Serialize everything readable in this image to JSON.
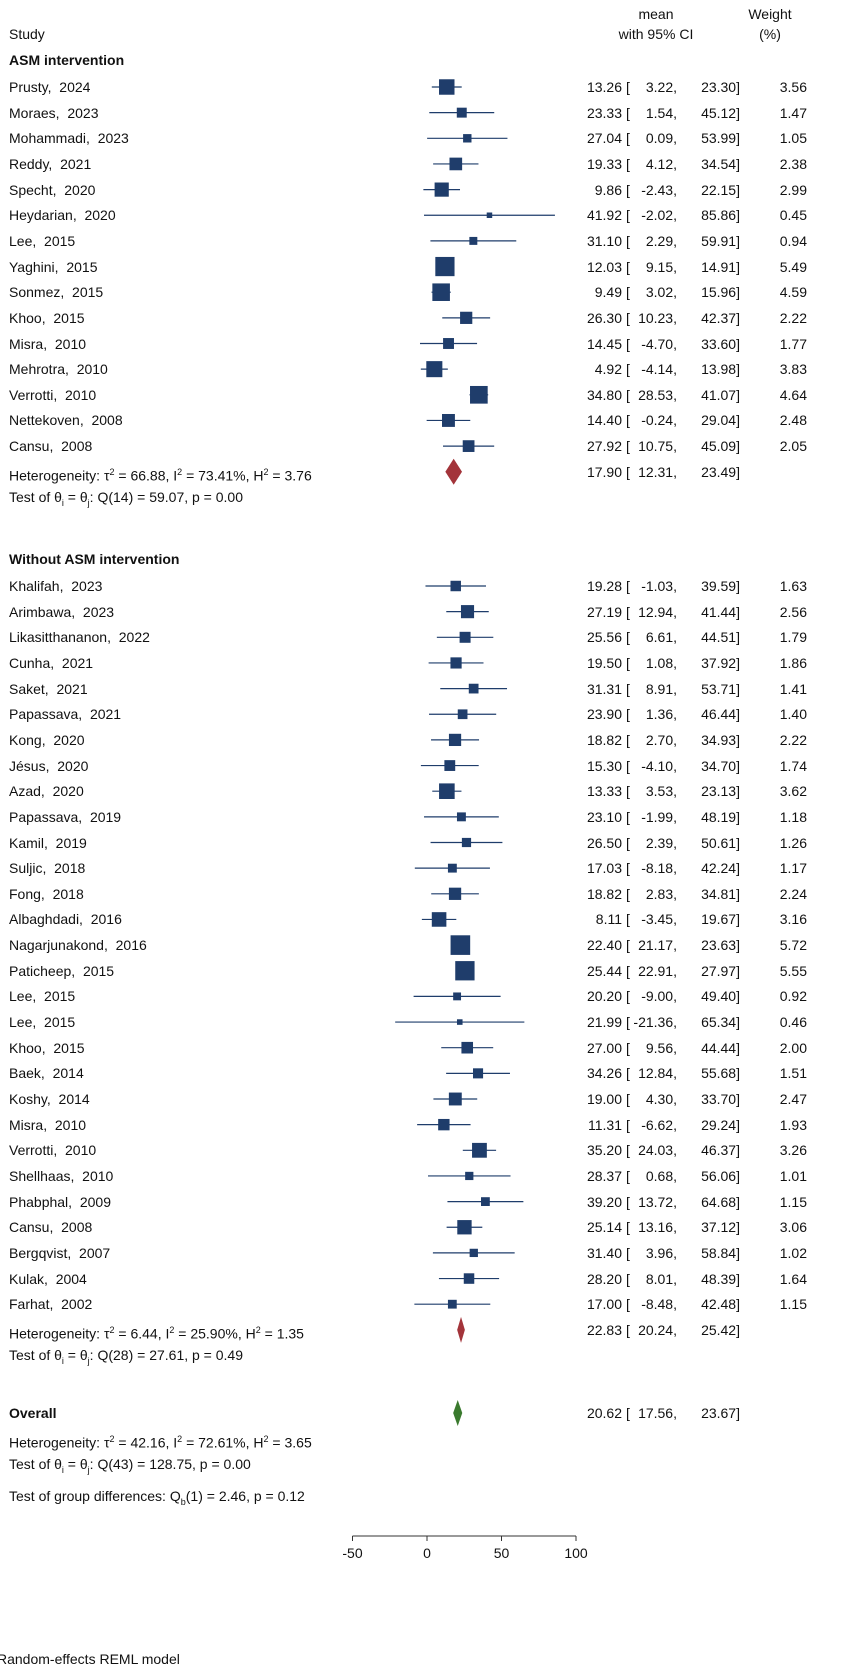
{
  "header": {
    "study": "Study",
    "mean_line1": "mean",
    "mean_line2": "with 95% CI",
    "weight_line1": "Weight",
    "weight_line2": "(%)"
  },
  "chart_data": {
    "type": "forest",
    "model_label": "Random-effects REML model",
    "x_axis": {
      "range": [
        -50,
        100
      ],
      "ticks": [
        "-50",
        "0",
        "50",
        "100"
      ],
      "reference_line": 0
    },
    "colors": {
      "study_marker": "#1f3d6b",
      "subgroup_diamond": "#a3343a",
      "overall_diamond": "#3a7a2e"
    },
    "groups": [
      {
        "name": "ASM intervention",
        "studies": [
          {
            "label": "Prusty,  2024",
            "mean": 13.26,
            "lo": 3.22,
            "hi": 23.3,
            "mean_text": "13.26",
            "lo_text": "3.22",
            "hi_text": "23.30",
            "weight": "3.56"
          },
          {
            "label": "Moraes,  2023",
            "mean": 23.33,
            "lo": 1.54,
            "hi": 45.12,
            "mean_text": "23.33",
            "lo_text": "1.54",
            "hi_text": "45.12",
            "weight": "1.47"
          },
          {
            "label": "Mohammadi,  2023",
            "mean": 27.04,
            "lo": 0.09,
            "hi": 53.99,
            "mean_text": "27.04",
            "lo_text": "0.09",
            "hi_text": "53.99",
            "weight": "1.05"
          },
          {
            "label": "Reddy,  2021",
            "mean": 19.33,
            "lo": 4.12,
            "hi": 34.54,
            "mean_text": "19.33",
            "lo_text": "4.12",
            "hi_text": "34.54",
            "weight": "2.38"
          },
          {
            "label": "Specht,  2020",
            "mean": 9.86,
            "lo": -2.43,
            "hi": 22.15,
            "mean_text": "9.86",
            "lo_text": "-2.43",
            "hi_text": "22.15",
            "weight": "2.99"
          },
          {
            "label": "Heydarian,  2020",
            "mean": 41.92,
            "lo": -2.02,
            "hi": 85.86,
            "mean_text": "41.92",
            "lo_text": "-2.02",
            "hi_text": "85.86",
            "weight": "0.45"
          },
          {
            "label": "Lee,  2015",
            "mean": 31.1,
            "lo": 2.29,
            "hi": 59.91,
            "mean_text": "31.10",
            "lo_text": "2.29",
            "hi_text": "59.91",
            "weight": "0.94"
          },
          {
            "label": "Yaghini,  2015",
            "mean": 12.03,
            "lo": 9.15,
            "hi": 14.91,
            "mean_text": "12.03",
            "lo_text": "9.15",
            "hi_text": "14.91",
            "weight": "5.49"
          },
          {
            "label": "Sonmez,  2015",
            "mean": 9.49,
            "lo": 3.02,
            "hi": 15.96,
            "mean_text": "9.49",
            "lo_text": "3.02",
            "hi_text": "15.96",
            "weight": "4.59"
          },
          {
            "label": "Khoo,  2015",
            "mean": 26.3,
            "lo": 10.23,
            "hi": 42.37,
            "mean_text": "26.30",
            "lo_text": "10.23",
            "hi_text": "42.37",
            "weight": "2.22"
          },
          {
            "label": "Misra,  2010",
            "mean": 14.45,
            "lo": -4.7,
            "hi": 33.6,
            "mean_text": "14.45",
            "lo_text": "-4.70",
            "hi_text": "33.60",
            "weight": "1.77"
          },
          {
            "label": "Mehrotra,  2010",
            "mean": 4.92,
            "lo": -4.14,
            "hi": 13.98,
            "mean_text": "4.92",
            "lo_text": "-4.14",
            "hi_text": "13.98",
            "weight": "3.83"
          },
          {
            "label": "Verrotti,  2010",
            "mean": 34.8,
            "lo": 28.53,
            "hi": 41.07,
            "mean_text": "34.80",
            "lo_text": "28.53",
            "hi_text": "41.07",
            "weight": "4.64"
          },
          {
            "label": "Nettekoven,  2008",
            "mean": 14.4,
            "lo": -0.24,
            "hi": 29.04,
            "mean_text": "14.40",
            "lo_text": "-0.24",
            "hi_text": "29.04",
            "weight": "2.48"
          },
          {
            "label": "Cansu,  2008",
            "mean": 27.92,
            "lo": 10.75,
            "hi": 45.09,
            "mean_text": "27.92",
            "lo_text": "10.75",
            "hi_text": "45.09",
            "weight": "2.05"
          }
        ],
        "summary": {
          "mean": 17.9,
          "lo": 12.31,
          "hi": 23.49,
          "mean_text": "17.90",
          "lo_text": "12.31",
          "hi_text": "23.49"
        },
        "het": {
          "tau2": "66.88",
          "i2": "73.41%",
          "h2": "3.76"
        },
        "test": {
          "q_df": "14",
          "q": "59.07",
          "p": "0.00"
        }
      },
      {
        "name": "Without ASM intervention",
        "studies": [
          {
            "label": "Khalifah,  2023",
            "mean": 19.28,
            "lo": -1.03,
            "hi": 39.59,
            "mean_text": "19.28",
            "lo_text": "-1.03",
            "hi_text": "39.59",
            "weight": "1.63"
          },
          {
            "label": "Arimbawa,  2023",
            "mean": 27.19,
            "lo": 12.94,
            "hi": 41.44,
            "mean_text": "27.19",
            "lo_text": "12.94",
            "hi_text": "41.44",
            "weight": "2.56"
          },
          {
            "label": "Likasitthananon,  2022",
            "mean": 25.56,
            "lo": 6.61,
            "hi": 44.51,
            "mean_text": "25.56",
            "lo_text": "6.61",
            "hi_text": "44.51",
            "weight": "1.79"
          },
          {
            "label": "Cunha,  2021",
            "mean": 19.5,
            "lo": 1.08,
            "hi": 37.92,
            "mean_text": "19.50",
            "lo_text": "1.08",
            "hi_text": "37.92",
            "weight": "1.86"
          },
          {
            "label": "Saket,  2021",
            "mean": 31.31,
            "lo": 8.91,
            "hi": 53.71,
            "mean_text": "31.31",
            "lo_text": "8.91",
            "hi_text": "53.71",
            "weight": "1.41"
          },
          {
            "label": "Papassava,  2021",
            "mean": 23.9,
            "lo": 1.36,
            "hi": 46.44,
            "mean_text": "23.90",
            "lo_text": "1.36",
            "hi_text": "46.44",
            "weight": "1.40"
          },
          {
            "label": "Kong,  2020",
            "mean": 18.82,
            "lo": 2.7,
            "hi": 34.93,
            "mean_text": "18.82",
            "lo_text": "2.70",
            "hi_text": "34.93",
            "weight": "2.22"
          },
          {
            "label": "Jésus,  2020",
            "mean": 15.3,
            "lo": -4.1,
            "hi": 34.7,
            "mean_text": "15.30",
            "lo_text": "-4.10",
            "hi_text": "34.70",
            "weight": "1.74"
          },
          {
            "label": "Azad,  2020",
            "mean": 13.33,
            "lo": 3.53,
            "hi": 23.13,
            "mean_text": "13.33",
            "lo_text": "3.53",
            "hi_text": "23.13",
            "weight": "3.62"
          },
          {
            "label": "Papassava,  2019",
            "mean": 23.1,
            "lo": -1.99,
            "hi": 48.19,
            "mean_text": "23.10",
            "lo_text": "-1.99",
            "hi_text": "48.19",
            "weight": "1.18"
          },
          {
            "label": "Kamil,  2019",
            "mean": 26.5,
            "lo": 2.39,
            "hi": 50.61,
            "mean_text": "26.50",
            "lo_text": "2.39",
            "hi_text": "50.61",
            "weight": "1.26"
          },
          {
            "label": "Suljic,  2018",
            "mean": 17.03,
            "lo": -8.18,
            "hi": 42.24,
            "mean_text": "17.03",
            "lo_text": "-8.18",
            "hi_text": "42.24",
            "weight": "1.17"
          },
          {
            "label": "Fong,  2018",
            "mean": 18.82,
            "lo": 2.83,
            "hi": 34.81,
            "mean_text": "18.82",
            "lo_text": "2.83",
            "hi_text": "34.81",
            "weight": "2.24"
          },
          {
            "label": "Albaghdadi,  2016",
            "mean": 8.11,
            "lo": -3.45,
            "hi": 19.67,
            "mean_text": "8.11",
            "lo_text": "-3.45",
            "hi_text": "19.67",
            "weight": "3.16"
          },
          {
            "label": "Nagarjunakond,  2016",
            "mean": 22.4,
            "lo": 21.17,
            "hi": 23.63,
            "mean_text": "22.40",
            "lo_text": "21.17",
            "hi_text": "23.63",
            "weight": "5.72"
          },
          {
            "label": "Paticheep,  2015",
            "mean": 25.44,
            "lo": 22.91,
            "hi": 27.97,
            "mean_text": "25.44",
            "lo_text": "22.91",
            "hi_text": "27.97",
            "weight": "5.55"
          },
          {
            "label": "Lee,  2015",
            "mean": 20.2,
            "lo": -9.0,
            "hi": 49.4,
            "mean_text": "20.20",
            "lo_text": "-9.00",
            "hi_text": "49.40",
            "weight": "0.92"
          },
          {
            "label": "Lee,  2015",
            "mean": 21.99,
            "lo": -21.36,
            "hi": 65.34,
            "mean_text": "21.99",
            "lo_text": "-21.36",
            "hi_text": "65.34",
            "weight": "0.46"
          },
          {
            "label": "Khoo,  2015",
            "mean": 27.0,
            "lo": 9.56,
            "hi": 44.44,
            "mean_text": "27.00",
            "lo_text": "9.56",
            "hi_text": "44.44",
            "weight": "2.00"
          },
          {
            "label": "Baek,  2014",
            "mean": 34.26,
            "lo": 12.84,
            "hi": 55.68,
            "mean_text": "34.26",
            "lo_text": "12.84",
            "hi_text": "55.68",
            "weight": "1.51"
          },
          {
            "label": "Koshy,  2014",
            "mean": 19.0,
            "lo": 4.3,
            "hi": 33.7,
            "mean_text": "19.00",
            "lo_text": "4.30",
            "hi_text": "33.70",
            "weight": "2.47"
          },
          {
            "label": "Misra,  2010",
            "mean": 11.31,
            "lo": -6.62,
            "hi": 29.24,
            "mean_text": "11.31",
            "lo_text": "-6.62",
            "hi_text": "29.24",
            "weight": "1.93"
          },
          {
            "label": "Verrotti,  2010",
            "mean": 35.2,
            "lo": 24.03,
            "hi": 46.37,
            "mean_text": "35.20",
            "lo_text": "24.03",
            "hi_text": "46.37",
            "weight": "3.26"
          },
          {
            "label": "Shellhaas,  2010",
            "mean": 28.37,
            "lo": 0.68,
            "hi": 56.06,
            "mean_text": "28.37",
            "lo_text": "0.68",
            "hi_text": "56.06",
            "weight": "1.01"
          },
          {
            "label": "Phabphal,  2009",
            "mean": 39.2,
            "lo": 13.72,
            "hi": 64.68,
            "mean_text": "39.20",
            "lo_text": "13.72",
            "hi_text": "64.68",
            "weight": "1.15"
          },
          {
            "label": "Cansu,  2008",
            "mean": 25.14,
            "lo": 13.16,
            "hi": 37.12,
            "mean_text": "25.14",
            "lo_text": "13.16",
            "hi_text": "37.12",
            "weight": "3.06"
          },
          {
            "label": "Bergqvist,  2007",
            "mean": 31.4,
            "lo": 3.96,
            "hi": 58.84,
            "mean_text": "31.40",
            "lo_text": "3.96",
            "hi_text": "58.84",
            "weight": "1.02"
          },
          {
            "label": "Kulak,  2004",
            "mean": 28.2,
            "lo": 8.01,
            "hi": 48.39,
            "mean_text": "28.20",
            "lo_text": "8.01",
            "hi_text": "48.39",
            "weight": "1.64"
          },
          {
            "label": "Farhat,  2002",
            "mean": 17.0,
            "lo": -8.48,
            "hi": 42.48,
            "mean_text": "17.00",
            "lo_text": "-8.48",
            "hi_text": "42.48",
            "weight": "1.15"
          }
        ],
        "summary": {
          "mean": 22.83,
          "lo": 20.24,
          "hi": 25.42,
          "mean_text": "22.83",
          "lo_text": "20.24",
          "hi_text": "25.42"
        },
        "het": {
          "tau2": "6.44",
          "i2": "25.90%",
          "h2": "1.35"
        },
        "test": {
          "q_df": "28",
          "q": "27.61",
          "p": "0.49"
        }
      }
    ],
    "overall": {
      "label": "Overall",
      "mean": 20.62,
      "lo": 17.56,
      "hi": 23.67,
      "mean_text": "20.62",
      "lo_text": "17.56",
      "hi_text": "23.67",
      "het": {
        "tau2": "42.16",
        "i2": "72.61%",
        "h2": "3.65"
      },
      "test": {
        "q_df": "43",
        "q": "128.75",
        "p": "0.00"
      }
    },
    "group_diff": {
      "df": "1",
      "q": "2.46",
      "p": "0.12"
    }
  }
}
